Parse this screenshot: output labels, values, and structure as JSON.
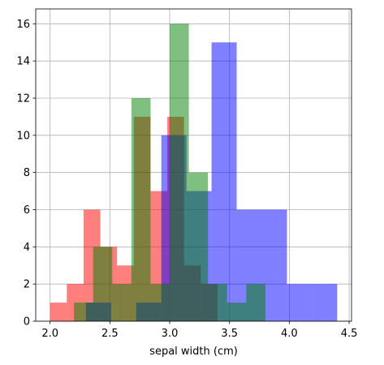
{
  "chart_data": {
    "type": "bar",
    "subtype": "overlaid-histogram",
    "xlabel": "sepal width (cm)",
    "ylabel": "",
    "xlim": [
      1.88,
      4.52
    ],
    "ylim": [
      0,
      16.8
    ],
    "grid": true,
    "x_ticks": [
      "2.0",
      "2.5",
      "3.0",
      "3.5",
      "4.0",
      "4.5"
    ],
    "x_tick_values": [
      2.0,
      2.5,
      3.0,
      3.5,
      4.0,
      4.5
    ],
    "y_ticks": [
      "0",
      "2",
      "4",
      "6",
      "8",
      "10",
      "12",
      "14",
      "16"
    ],
    "y_tick_values": [
      0,
      2,
      4,
      6,
      8,
      10,
      12,
      14,
      16
    ],
    "alpha": 0.5,
    "series": [
      {
        "color": "#ff0000",
        "bins": [
          {
            "x0": 2.0,
            "x1": 2.14,
            "count": 1
          },
          {
            "x0": 2.14,
            "x1": 2.28,
            "count": 2
          },
          {
            "x0": 2.28,
            "x1": 2.42,
            "count": 6
          },
          {
            "x0": 2.42,
            "x1": 2.56,
            "count": 4
          },
          {
            "x0": 2.56,
            "x1": 2.7,
            "count": 3
          },
          {
            "x0": 2.7,
            "x1": 2.84,
            "count": 11
          },
          {
            "x0": 2.84,
            "x1": 2.98,
            "count": 7
          },
          {
            "x0": 2.98,
            "x1": 3.12,
            "count": 11
          },
          {
            "x0": 3.12,
            "x1": 3.26,
            "count": 3
          },
          {
            "x0": 3.26,
            "x1": 3.4,
            "count": 2
          }
        ]
      },
      {
        "color": "#0000ff",
        "bins": [
          {
            "x0": 2.3,
            "x1": 2.51,
            "count": 1
          },
          {
            "x0": 2.51,
            "x1": 2.72,
            "count": 0
          },
          {
            "x0": 2.72,
            "x1": 2.93,
            "count": 1
          },
          {
            "x0": 2.93,
            "x1": 3.14,
            "count": 10
          },
          {
            "x0": 3.14,
            "x1": 3.35,
            "count": 7
          },
          {
            "x0": 3.35,
            "x1": 3.56,
            "count": 15
          },
          {
            "x0": 3.56,
            "x1": 3.77,
            "count": 6
          },
          {
            "x0": 3.77,
            "x1": 3.98,
            "count": 6
          },
          {
            "x0": 3.98,
            "x1": 4.19,
            "count": 2
          },
          {
            "x0": 4.19,
            "x1": 4.4,
            "count": 2
          }
        ]
      },
      {
        "color": "#008000",
        "bins": [
          {
            "x0": 2.2,
            "x1": 2.36,
            "count": 1
          },
          {
            "x0": 2.36,
            "x1": 2.52,
            "count": 4
          },
          {
            "x0": 2.52,
            "x1": 2.68,
            "count": 2
          },
          {
            "x0": 2.68,
            "x1": 2.84,
            "count": 12
          },
          {
            "x0": 2.84,
            "x1": 3.0,
            "count": 2
          },
          {
            "x0": 3.0,
            "x1": 3.16,
            "count": 16
          },
          {
            "x0": 3.16,
            "x1": 3.32,
            "count": 8
          },
          {
            "x0": 3.32,
            "x1": 3.48,
            "count": 2
          },
          {
            "x0": 3.48,
            "x1": 3.64,
            "count": 1
          },
          {
            "x0": 3.64,
            "x1": 3.8,
            "count": 2
          }
        ]
      }
    ]
  }
}
